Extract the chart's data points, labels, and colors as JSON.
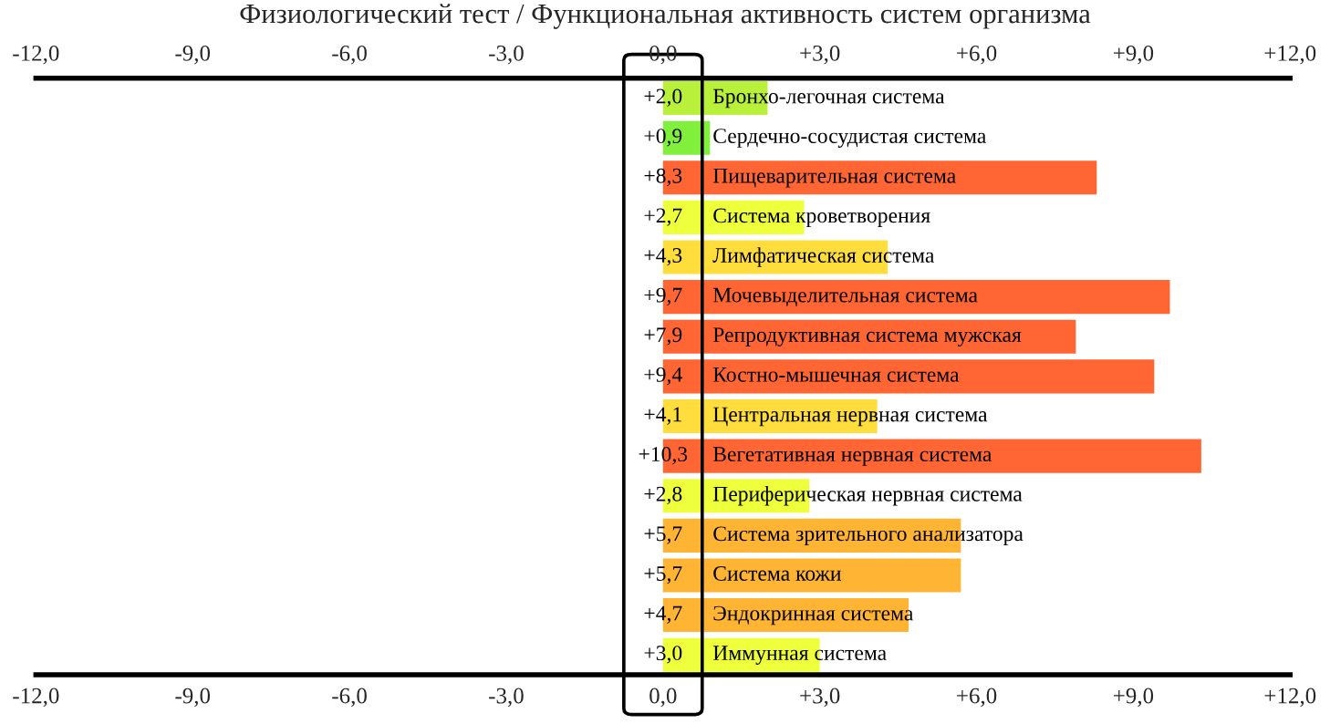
{
  "chart_data": {
    "type": "bar",
    "orientation": "horizontal",
    "title": "Физиологический тест / Функциональная активность систем организма",
    "categories": [
      "Бронхо-легочная система",
      "Сердечно-сосудистая система",
      "Пищеварительная система",
      "Система кроветворения",
      "Лимфатическая система",
      "Мочевыделительная система",
      "Репродуктивная система мужская",
      "Костно-мышечная система",
      "Центральная нервная система",
      "Вегетативная нервная система",
      "Периферическая нервная система",
      "Система зрительного анализатора",
      "Система кожи",
      "Эндокринная система",
      "Иммунная система"
    ],
    "values": [
      2.0,
      0.9,
      8.3,
      2.7,
      4.3,
      9.7,
      7.9,
      9.4,
      4.1,
      10.3,
      2.8,
      5.7,
      5.7,
      4.7,
      3.0
    ],
    "value_labels": [
      "+2,0",
      "+0,9",
      "+8,3",
      "+2,7",
      "+4,3",
      "+9,7",
      "+7,9",
      "+9,4",
      "+4,1",
      "+10,3",
      "+2,8",
      "+5,7",
      "+5,7",
      "+4,7",
      "+3,0"
    ],
    "colors": [
      "#b8f03c",
      "#80f03c",
      "#ff6633",
      "#eeff3c",
      "#ffdd3c",
      "#ff6633",
      "#ff6633",
      "#ff6633",
      "#ffdd3c",
      "#ff6633",
      "#eeff3c",
      "#ffb433",
      "#ffb433",
      "#ffb433",
      "#eeff3c"
    ],
    "xlim": [
      -12,
      12
    ],
    "xticks": [
      {
        "value": -12,
        "label": "-12,0"
      },
      {
        "value": -9,
        "label": "-9,0"
      },
      {
        "value": -6,
        "label": "-6,0"
      },
      {
        "value": -3,
        "label": "-3,0"
      },
      {
        "value": 0,
        "label": "0,0"
      },
      {
        "value": 3,
        "label": "+3,0"
      },
      {
        "value": 6,
        "label": "+6,0"
      },
      {
        "value": 9,
        "label": "+9,0"
      },
      {
        "value": 12,
        "label": "+12,0"
      }
    ],
    "x2lim": [
      -12,
      12
    ],
    "x2ticks": [
      {
        "value": -12,
        "label": "-12,0"
      },
      {
        "value": -9,
        "label": "-9,0"
      },
      {
        "value": -6,
        "label": "-6,0"
      },
      {
        "value": -3,
        "label": "-3,0"
      },
      {
        "value": 0,
        "label": "0,0"
      },
      {
        "value": 3,
        "label": "+3,0"
      },
      {
        "value": 6,
        "label": "+6,0"
      },
      {
        "value": 9,
        "label": "+9,0"
      },
      {
        "value": 12,
        "label": "+12,0"
      }
    ],
    "grid": false,
    "legend": false
  }
}
